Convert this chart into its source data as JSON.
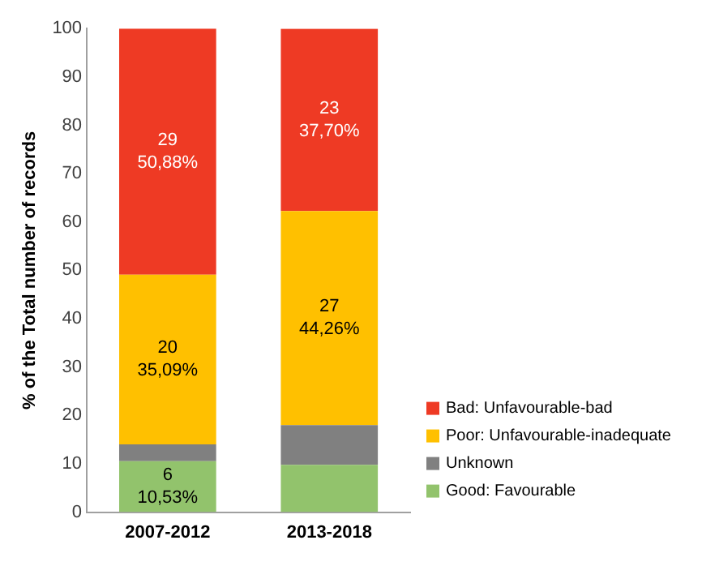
{
  "chart_data": {
    "type": "bar",
    "stacked": true,
    "ylabel": "% of the Total number of records",
    "categories": [
      "2007-2012",
      "2013-2018"
    ],
    "series": [
      {
        "name": "Good: Favourable",
        "color": "#92c36c",
        "values": [
          10.53,
          9.8
        ],
        "value_labels": [
          "6\n10,53%",
          null
        ]
      },
      {
        "name": "Unknown",
        "color": "#808080",
        "values": [
          3.5,
          8.2
        ],
        "value_labels": [
          null,
          null
        ]
      },
      {
        "name": "Poor: Unfavourable-inadequate",
        "color": "#ffc000",
        "values": [
          35.09,
          44.26
        ],
        "value_labels": [
          "20\n35,09%",
          "27\n44,26%"
        ]
      },
      {
        "name": "Bad: Unfavourable-bad",
        "color": "#ee3a24",
        "values": [
          50.88,
          37.7
        ],
        "value_labels": [
          "29\n50,88%",
          "23\n37,70%"
        ]
      }
    ],
    "ylim": [
      0,
      100
    ],
    "yticks": [
      0,
      10,
      20,
      30,
      40,
      50,
      60,
      70,
      80,
      90,
      100
    ],
    "grid": false,
    "legend": "right"
  }
}
